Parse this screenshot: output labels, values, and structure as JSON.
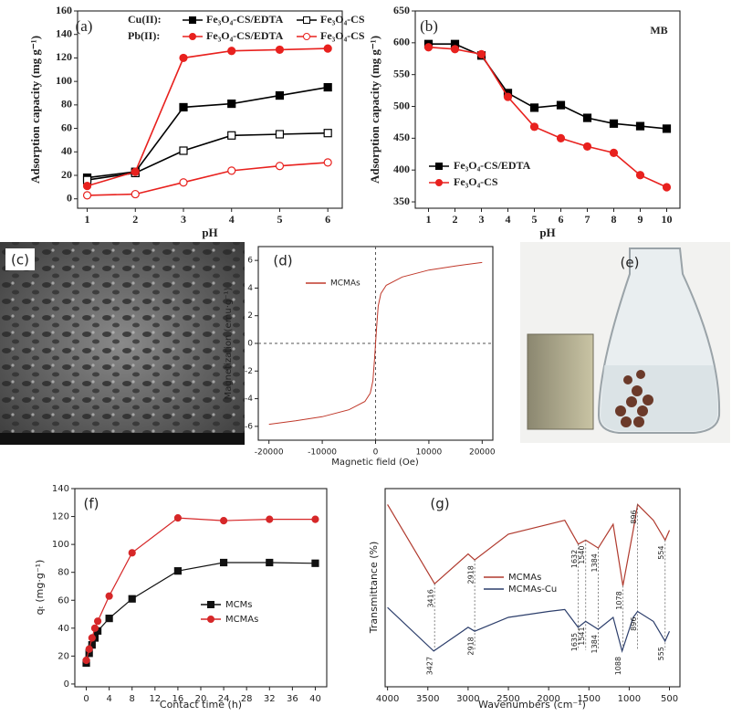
{
  "chart_data": [
    {
      "type": "line",
      "title": "(a)",
      "x_label": "pH",
      "y_label": "Adsorption capacity (mg g⁻¹)",
      "x": [
        1,
        2,
        3,
        4,
        5,
        6
      ],
      "legend_groups": [
        "Cu(II):",
        "Pb(II):"
      ],
      "series": [
        {
          "name": "Fe₃O₄-CS/EDTA",
          "color": "#000000",
          "marker": "square",
          "filled": true,
          "values": [
            18,
            23,
            78,
            81,
            88,
            95
          ]
        },
        {
          "name": "Fe₃O₄-CS",
          "color": "#000000",
          "marker": "square",
          "filled": false,
          "values": [
            16,
            22,
            41,
            54,
            55,
            56
          ]
        },
        {
          "name": "Fe₃O₄-CS/EDTA",
          "color": "#e8211e",
          "marker": "circle",
          "filled": true,
          "values": [
            11,
            23,
            120,
            126,
            127,
            128
          ]
        },
        {
          "name": "Fe₃O₄-CS",
          "color": "#e8211e",
          "marker": "circle",
          "filled": false,
          "values": [
            3,
            4,
            14,
            24,
            28,
            31
          ]
        }
      ],
      "xlim": [
        0.8,
        6.3
      ],
      "xticks": [
        1,
        2,
        3,
        4,
        5,
        6
      ],
      "ylim": [
        -8,
        160
      ],
      "yticks": [
        0,
        20,
        40,
        60,
        80,
        100,
        120,
        140,
        160
      ]
    },
    {
      "type": "line",
      "title": "(b)",
      "annotation": "MB",
      "x_label": "pH",
      "y_label": "Adsorption capacity (mg g⁻¹)",
      "x": [
        1,
        2,
        3,
        4,
        5,
        6,
        7,
        8,
        9,
        10
      ],
      "series": [
        {
          "name": "Fe₃O₄-CS/EDTA",
          "color": "#000000",
          "marker": "square",
          "filled": true,
          "values": [
            598,
            598,
            580,
            521,
            498,
            502,
            482,
            473,
            469,
            465
          ]
        },
        {
          "name": "Fe₃O₄-CS",
          "color": "#e8211e",
          "marker": "circle",
          "filled": true,
          "values": [
            593,
            590,
            582,
            515,
            468,
            450,
            437,
            427,
            392,
            373
          ]
        }
      ],
      "xlim": [
        0.5,
        10.5
      ],
      "xticks": [
        1,
        2,
        3,
        4,
        5,
        6,
        7,
        8,
        9,
        10
      ],
      "ylim": [
        340,
        650
      ],
      "yticks": [
        350,
        400,
        450,
        500,
        550,
        600,
        650
      ]
    },
    {
      "type": "line",
      "title": "(d)",
      "x_label": "Magnetic field (Oe)",
      "y_label": "Magnetization (emu·g⁻¹)",
      "x": [
        -20000,
        -15000,
        -10000,
        -5000,
        -2000,
        -1000,
        -500,
        -200,
        0,
        200,
        500,
        1000,
        2000,
        5000,
        10000,
        15000,
        20000
      ],
      "zero_lines": true,
      "series": [
        {
          "name": "MCMAs",
          "color": "#c0392b",
          "marker": "none",
          "values": [
            -5.85,
            -5.6,
            -5.3,
            -4.8,
            -4.2,
            -3.6,
            -2.7,
            -1.2,
            0,
            1.2,
            2.7,
            3.6,
            4.2,
            4.8,
            5.3,
            5.6,
            5.85
          ]
        }
      ],
      "xlim": [
        -22000,
        22000
      ],
      "xticks": [
        -20000,
        -10000,
        0,
        10000,
        20000
      ],
      "ylim": [
        -7,
        7
      ],
      "yticks": [
        -6,
        -4,
        -2,
        0,
        2,
        4,
        6
      ]
    },
    {
      "type": "line",
      "title": "(f)",
      "x_label": "Contact time (h)",
      "y_label": "qₜ (mg·g⁻¹)",
      "x": [
        0,
        0.5,
        1,
        1.5,
        2,
        4,
        8,
        16,
        24,
        32,
        40
      ],
      "series": [
        {
          "name": "MCMs",
          "color": "#111111",
          "marker": "square",
          "filled": true,
          "values": [
            15,
            22,
            28,
            33,
            38,
            47,
            61,
            81,
            87,
            87,
            86.5
          ]
        },
        {
          "name": "MCMAs",
          "color": "#d62728",
          "marker": "circle",
          "filled": true,
          "values": [
            17,
            25,
            33,
            40,
            45,
            63,
            94,
            119,
            117,
            118,
            118
          ]
        }
      ],
      "xlim": [
        -2,
        42
      ],
      "xticks": [
        0,
        4,
        8,
        12,
        16,
        20,
        24,
        28,
        32,
        36,
        40
      ],
      "ylim": [
        -2,
        140
      ],
      "yticks": [
        0,
        20,
        40,
        60,
        80,
        100,
        120,
        140
      ]
    },
    {
      "type": "line",
      "title": "(g)",
      "x_label": "Wavenumbers (cm⁻¹)",
      "y_label": "Transmittance (%)",
      "series": [
        {
          "name": "MCMAs",
          "color": "#b03a2e",
          "marker": "none",
          "x": [
            4000,
            3416,
            3000,
            2918,
            2500,
            2000,
            1800,
            1632,
            1540,
            1384,
            1200,
            1078,
            950,
            896,
            700,
            554,
            500
          ],
          "values": [
            92,
            52,
            67,
            64,
            77,
            82,
            84,
            72,
            74,
            70,
            82,
            51,
            79,
            92,
            84,
            74,
            79
          ],
          "peaks": [
            3416,
            2918,
            1632,
            1540,
            1384,
            1078,
            896,
            554
          ]
        },
        {
          "name": "MCMAs-Cu",
          "color": "#2c3e6b",
          "marker": "none",
          "x": [
            4000,
            3427,
            3000,
            2918,
            2500,
            2000,
            1800,
            1635,
            1541,
            1384,
            1200,
            1088,
            950,
            896,
            700,
            555,
            500
          ],
          "values": [
            40,
            18,
            30,
            28,
            35,
            38,
            39,
            30,
            33,
            29,
            35,
            18,
            35,
            38,
            33,
            23,
            28
          ],
          "peaks": [
            3427,
            2918,
            1635,
            1541,
            1384,
            1088,
            896,
            555
          ]
        }
      ],
      "xlim": [
        4030,
        370
      ],
      "xticks": [
        4000,
        3500,
        3000,
        2500,
        2000,
        1500,
        1000,
        500
      ],
      "ylim": [
        0,
        100
      ]
    }
  ],
  "images": [
    {
      "label": "(c)"
    },
    {
      "label": "(e)"
    }
  ]
}
